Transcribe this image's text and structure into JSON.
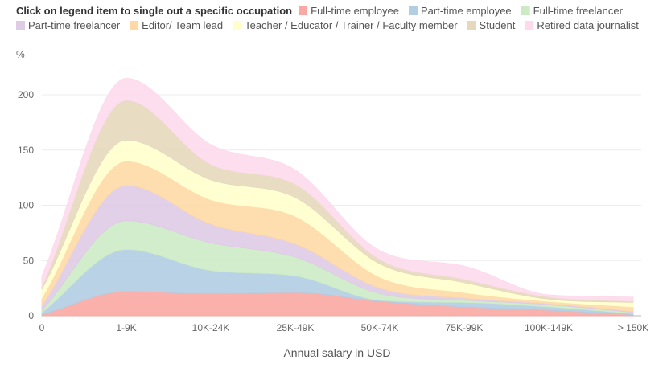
{
  "legend": {
    "title": "Click on legend item to single out a specific occupation"
  },
  "chart_data": {
    "type": "area",
    "stacked": true,
    "smooth": true,
    "title": "",
    "ylabel": "%",
    "xlabel": "Annual salary in USD",
    "categories": [
      "0",
      "1-9K",
      "10K-24K",
      "25K-49K",
      "50K-74K",
      "75K-99K",
      "100K-149K",
      "> 150K"
    ],
    "ylim": [
      0,
      225
    ],
    "yticks": [
      0,
      50,
      100,
      150,
      200
    ],
    "grid": true,
    "legend_position": "top",
    "series": [
      {
        "name": "Full-time employee",
        "color": "#f9a8a3",
        "values": [
          1,
          22,
          20,
          21,
          13,
          8,
          5,
          1
        ]
      },
      {
        "name": "Part-time employee",
        "color": "#b3cde3",
        "values": [
          2,
          38,
          21,
          15,
          1,
          4,
          3,
          1
        ]
      },
      {
        "name": "Full-time freelancer",
        "color": "#ccebc5",
        "values": [
          2,
          26,
          25,
          17,
          6,
          2,
          2,
          1
        ]
      },
      {
        "name": "Part-time freelancer",
        "color": "#decbe4",
        "values": [
          4,
          32,
          17,
          12,
          5,
          2,
          1,
          1
        ]
      },
      {
        "name": "Editor/ Team lead",
        "color": "#fed9a6",
        "values": [
          7,
          22,
          22,
          25,
          10,
          5,
          2,
          4
        ]
      },
      {
        "name": "Teacher / Educator / Trainer / Faculty member",
        "color": "#ffffcc",
        "values": [
          8,
          19,
          18,
          17,
          12,
          9,
          2,
          4
        ]
      },
      {
        "name": "Student",
        "color": "#e5d8bd",
        "values": [
          2,
          36,
          14,
          12,
          4,
          3,
          2,
          1
        ]
      },
      {
        "name": "Retired data journalist",
        "color": "#fddaec",
        "values": [
          10,
          20,
          18,
          13,
          8,
          12,
          2,
          4
        ]
      }
    ]
  }
}
